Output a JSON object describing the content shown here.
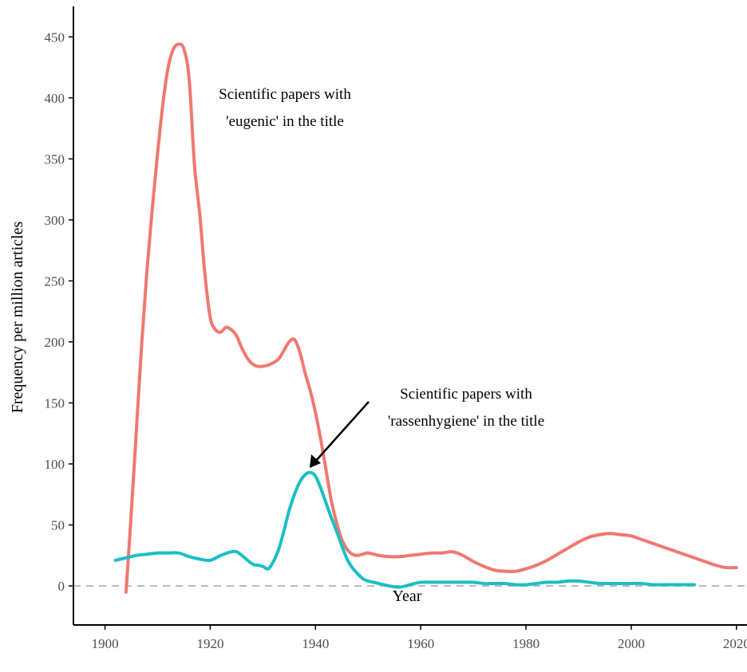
{
  "colors": {
    "eugenic": "#F07870",
    "rassenhygiene": "#1ABFC4",
    "zero_line": "#BBBBBB",
    "axis": "#000000",
    "arrow": "#000000"
  },
  "chart_data": {
    "type": "line",
    "title": "",
    "xlabel": "Year",
    "ylabel": "Frequency per million articles",
    "xlim": [
      1894,
      2022
    ],
    "ylim": [
      -32,
      475
    ],
    "x_ticks": [
      1900,
      1920,
      1940,
      1960,
      1980,
      2000,
      2020
    ],
    "y_ticks": [
      0,
      50,
      100,
      150,
      200,
      250,
      300,
      350,
      400,
      450
    ],
    "reference_line": {
      "y": 0,
      "style": "dashed"
    },
    "grid": false,
    "legend": "none",
    "series": [
      {
        "key": "eugenic",
        "x": [
          1904,
          1905,
          1906,
          1907,
          1908,
          1909,
          1910,
          1911,
          1912,
          1913,
          1914,
          1915,
          1916,
          1917,
          1918,
          1919,
          1920,
          1921,
          1922,
          1923,
          1924,
          1925,
          1926,
          1927,
          1928,
          1929,
          1930,
          1931,
          1932,
          1933,
          1934,
          1935,
          1936,
          1937,
          1938,
          1939,
          1940,
          1941,
          1942,
          1943,
          1944,
          1945,
          1946,
          1947,
          1948,
          1949,
          1950,
          1952,
          1954,
          1956,
          1958,
          1960,
          1962,
          1964,
          1966,
          1968,
          1970,
          1972,
          1974,
          1976,
          1978,
          1980,
          1982,
          1984,
          1986,
          1988,
          1990,
          1992,
          1994,
          1996,
          1998,
          2000,
          2002,
          2004,
          2006,
          2008,
          2010,
          2012,
          2014,
          2016,
          2018,
          2020
        ],
        "y": [
          -5,
          60,
          130,
          200,
          260,
          310,
          355,
          395,
          425,
          440,
          444,
          440,
          415,
          345,
          305,
          255,
          220,
          210,
          208,
          212,
          210,
          205,
          195,
          187,
          182,
          180,
          180,
          181,
          183,
          186,
          193,
          200,
          202,
          192,
          175,
          160,
          142,
          120,
          95,
          70,
          52,
          38,
          30,
          26,
          25,
          26,
          27,
          25,
          24,
          24,
          25,
          26,
          27,
          27,
          28,
          25,
          20,
          16,
          13,
          12,
          12,
          14,
          17,
          21,
          26,
          31,
          36,
          40,
          42,
          43,
          42,
          41,
          38,
          35,
          32,
          29,
          26,
          23,
          20,
          17,
          15,
          15
        ]
      },
      {
        "key": "rassenhygiene",
        "x": [
          1902,
          1904,
          1906,
          1908,
          1910,
          1912,
          1914,
          1916,
          1918,
          1920,
          1922,
          1924,
          1925,
          1926,
          1928,
          1929,
          1930,
          1931,
          1932,
          1933,
          1934,
          1935,
          1936,
          1937,
          1938,
          1939,
          1940,
          1941,
          1942,
          1943,
          1944,
          1945,
          1946,
          1947,
          1948,
          1949,
          1950,
          1951,
          1952,
          1954,
          1956,
          1958,
          1960,
          1962,
          1964,
          1966,
          1968,
          1970,
          1972,
          1974,
          1976,
          1978,
          1980,
          1982,
          1984,
          1986,
          1988,
          1990,
          1992,
          1994,
          1996,
          1998,
          2000,
          2002,
          2004,
          2006,
          2008,
          2010,
          2012
        ],
        "y": [
          21,
          23,
          25,
          26,
          27,
          27,
          27,
          24,
          22,
          21,
          25,
          28,
          28,
          25,
          18,
          17,
          16,
          14,
          20,
          30,
          45,
          62,
          75,
          85,
          91,
          93,
          90,
          80,
          68,
          56,
          45,
          33,
          22,
          15,
          10,
          6,
          4,
          3,
          2,
          0,
          -1,
          1,
          3,
          3,
          3,
          3,
          3,
          3,
          2,
          2,
          2,
          1,
          1,
          2,
          3,
          3,
          4,
          4,
          3,
          2,
          2,
          2,
          2,
          2,
          1,
          1,
          1,
          1,
          1
        ]
      }
    ],
    "annotations": [
      {
        "key": "eugenic",
        "lines": [
          "Scientific papers with",
          "'eugenic' in the title"
        ]
      },
      {
        "key": "rassenhygiene",
        "lines": [
          "Scientific papers with",
          "'rassenhygiene' in the title"
        ]
      }
    ]
  }
}
